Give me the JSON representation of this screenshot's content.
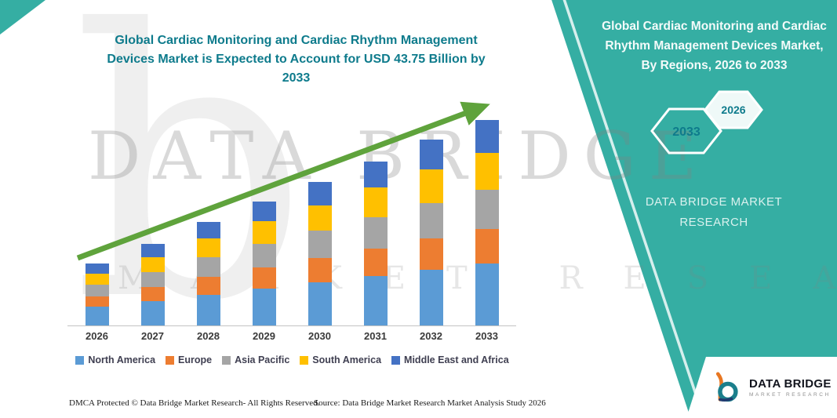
{
  "theme": {
    "teal": "#35AEA3",
    "title_teal": "#0E7B8C",
    "arrow_green": "#5FA33C",
    "logo_teal": "#1B7F8C",
    "logo_orange": "#E87722"
  },
  "left_title": "Global Cardiac Monitoring and Cardiac Rhythm Management Devices Market is Expected to Account for USD 43.75 Billion by 2033",
  "right_panel": {
    "title": "Global Cardiac Monitoring and Cardiac Rhythm Management Devices Market, By Regions, 2026 to 2033",
    "hexagons": [
      "2033",
      "2026"
    ],
    "brand": "DATA BRIDGE MARKET RESEARCH"
  },
  "watermark": {
    "line1": "DATA BRIDGE",
    "line2": "MARKET RESEARCH",
    "letter": "b"
  },
  "chart_data": {
    "type": "bar",
    "stacked": true,
    "title": "Global Cardiac Monitoring and Cardiac Rhythm Management Devices Market is Expected to Account for USD 43.75 Billion by 2033",
    "unit": "USD Billion",
    "categories": [
      "2026",
      "2027",
      "2028",
      "2029",
      "2030",
      "2031",
      "2032",
      "2033"
    ],
    "series": [
      {
        "name": "North America",
        "color": "#5B9BD5",
        "values": [
          3.96,
          5.19,
          6.6,
          7.92,
          9.15,
          10.5,
          11.88,
          13.12
        ]
      },
      {
        "name": "Europe",
        "color": "#ED7D31",
        "values": [
          2.24,
          2.94,
          3.74,
          4.49,
          5.19,
          5.95,
          6.73,
          7.44
        ]
      },
      {
        "name": "Asia Pacific",
        "color": "#A5A5A5",
        "values": [
          2.51,
          3.29,
          4.18,
          5.02,
          5.8,
          6.65,
          7.52,
          8.31
        ]
      },
      {
        "name": "South America",
        "color": "#FFC000",
        "values": [
          2.38,
          3.11,
          3.96,
          4.75,
          5.49,
          6.3,
          7.13,
          7.88
        ]
      },
      {
        "name": "Middle East and Africa",
        "color": "#4472C4",
        "values": [
          2.11,
          2.77,
          3.52,
          4.22,
          4.88,
          5.6,
          6.34,
          7.0
        ]
      }
    ],
    "totals_estimated": [
      13.2,
      17.3,
      22.0,
      26.4,
      30.51,
      35.0,
      39.6,
      43.75
    ],
    "final_value_label": "USD 43.75 Billion by 2033",
    "ylim": [
      0,
      45
    ],
    "grid": false,
    "legend_position": "bottom",
    "trend_arrow": true
  },
  "footer": {
    "dmca": "DMCA Protected © Data Bridge Market Research-  All Rights Reserved.",
    "source": "Source: Data Bridge Market Research  Market Analysis Study 2026"
  },
  "logo": {
    "title": "DATA BRIDGE",
    "sub": "MARKET RESEARCH"
  }
}
